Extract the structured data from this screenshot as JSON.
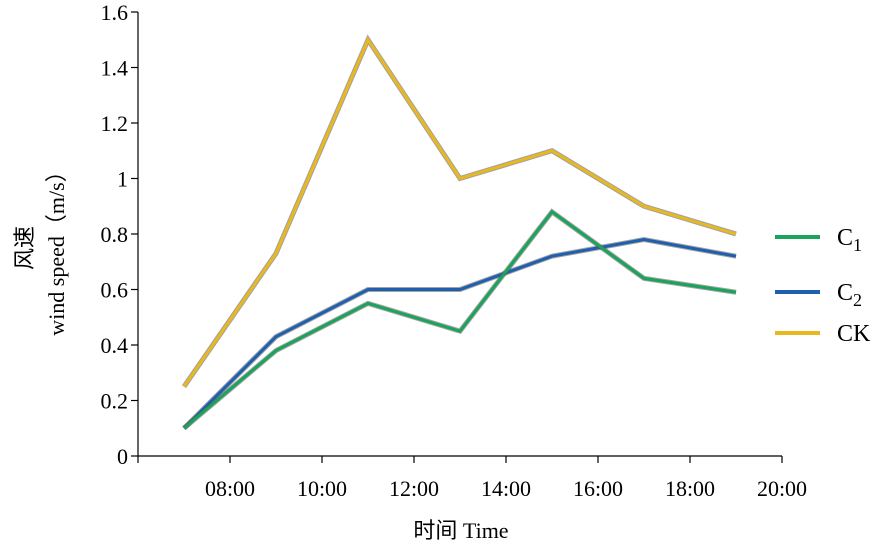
{
  "chart_data": {
    "type": "line",
    "categories": [
      "08:00",
      "10:00",
      "12:00",
      "14:00",
      "16:00",
      "18:00",
      "20:00"
    ],
    "x": [
      7,
      9,
      11,
      13,
      15,
      17,
      19
    ],
    "series": [
      {
        "name": "C1",
        "base": "C",
        "sub": "1",
        "color": "#1aa35a",
        "x": [
          7,
          9,
          11,
          13,
          15,
          17,
          19
        ],
        "values": [
          0.1,
          0.38,
          0.55,
          0.45,
          0.88,
          0.64,
          0.59
        ]
      },
      {
        "name": "C2",
        "base": "C",
        "sub": "2",
        "color": "#1f5fb0",
        "x": [
          7,
          9,
          11,
          13,
          15,
          17,
          19
        ],
        "values": [
          0.1,
          0.43,
          0.6,
          0.6,
          0.72,
          0.78,
          0.72
        ]
      },
      {
        "name": "CK",
        "base": "CK",
        "sub": "",
        "color": "#e8b81e",
        "x": [
          7,
          9,
          11,
          13,
          15,
          17,
          19
        ],
        "values": [
          0.25,
          0.73,
          1.5,
          1.0,
          1.1,
          0.9,
          0.8
        ]
      }
    ],
    "xlabel": "时间 Time",
    "ylabel_cn": "风速",
    "ylabel_en": "wind speed（m/s）",
    "ylim": [
      0,
      1.6
    ],
    "xlim": [
      6,
      20
    ],
    "yticks": [
      "0",
      "0.2",
      "0.4",
      "0.6",
      "0.8",
      "1",
      "1.2",
      "1.4",
      "1.6"
    ],
    "ytick_values": [
      0,
      0.2,
      0.4,
      0.6,
      0.8,
      1.0,
      1.2,
      1.4,
      1.6
    ],
    "grid": false,
    "legend_position": "right"
  }
}
